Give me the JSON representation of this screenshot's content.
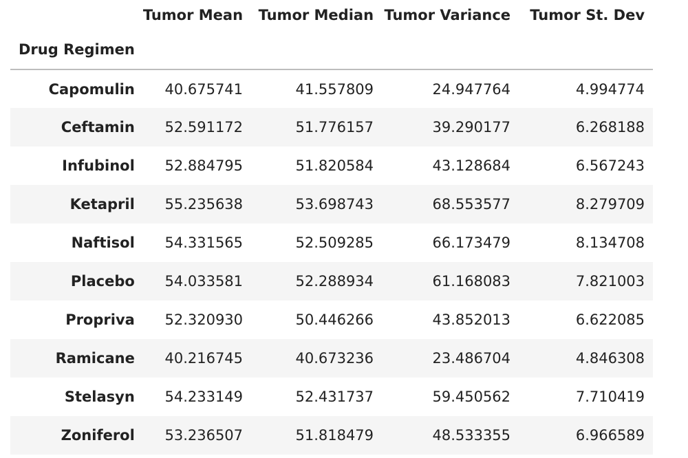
{
  "table": {
    "index_name": "Drug Regimen",
    "columns": [
      "Tumor Mean",
      "Tumor Median",
      "Tumor Variance",
      "Tumor St. Dev"
    ],
    "rows": [
      {
        "label": "Capomulin",
        "values": [
          "40.675741",
          "41.557809",
          "24.947764",
          "4.994774"
        ]
      },
      {
        "label": "Ceftamin",
        "values": [
          "52.591172",
          "51.776157",
          "39.290177",
          "6.268188"
        ]
      },
      {
        "label": "Infubinol",
        "values": [
          "52.884795",
          "51.820584",
          "43.128684",
          "6.567243"
        ]
      },
      {
        "label": "Ketapril",
        "values": [
          "55.235638",
          "53.698743",
          "68.553577",
          "8.279709"
        ]
      },
      {
        "label": "Naftisol",
        "values": [
          "54.331565",
          "52.509285",
          "66.173479",
          "8.134708"
        ]
      },
      {
        "label": "Placebo",
        "values": [
          "54.033581",
          "52.288934",
          "61.168083",
          "7.821003"
        ]
      },
      {
        "label": "Propriva",
        "values": [
          "52.320930",
          "50.446266",
          "43.852013",
          "6.622085"
        ]
      },
      {
        "label": "Ramicane",
        "values": [
          "40.216745",
          "40.673236",
          "23.486704",
          "4.846308"
        ]
      },
      {
        "label": "Stelasyn",
        "values": [
          "54.233149",
          "52.431737",
          "59.450562",
          "7.710419"
        ]
      },
      {
        "label": "Zoniferol",
        "values": [
          "53.236507",
          "51.818479",
          "48.533355",
          "6.966589"
        ]
      }
    ]
  }
}
